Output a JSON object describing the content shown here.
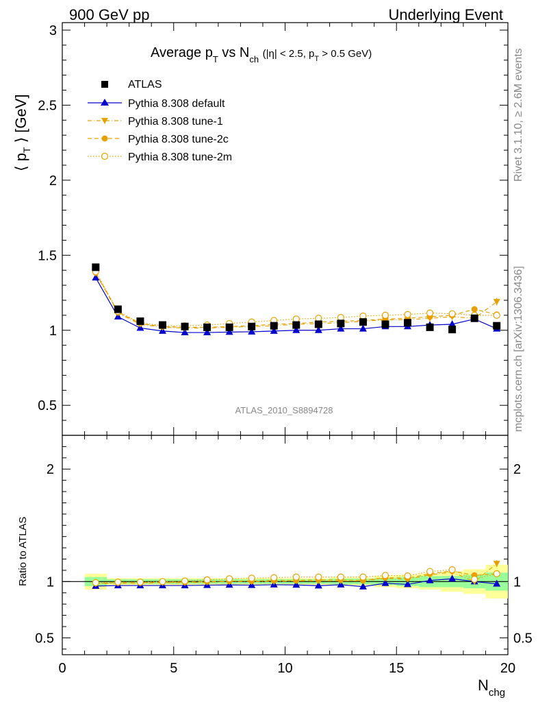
{
  "header": {
    "left": "900 GeV pp",
    "right": "Underlying Event"
  },
  "plot_title": {
    "main": "Average p",
    "sub1": "T",
    "vs": " vs N",
    "sub2": "ch",
    "cuts": "(|η| < 2.5, p",
    "sub3": "T",
    "cuts2": " > 0.5 GeV)"
  },
  "side_labels": {
    "rivet": "Rivet 3.1.10, ≥ 2.6M events",
    "mcplots": "mcplots.cern.ch [arXiv:1306.3436]"
  },
  "watermark": "ATLAS_2010_S8894728",
  "colors": {
    "atlas": "#000000",
    "default": "#0000cc",
    "tunes": "#e8a000",
    "band_green": "#99ff99",
    "band_yellow": "#ffff99"
  },
  "chart_data": [
    {
      "type": "scatter",
      "ylabel": "⟨ p_T ⟩ [GeV]",
      "xlim": [
        0,
        20
      ],
      "ylim": [
        0.3,
        3.05
      ],
      "yticks": [
        "0.5",
        "1",
        "1.5",
        "2",
        "2.5",
        "3"
      ],
      "legend_placement": "top-left",
      "x": [
        1.5,
        2.5,
        3.5,
        4.5,
        5.5,
        6.5,
        7.5,
        8.5,
        9.5,
        10.5,
        11.5,
        12.5,
        13.5,
        14.5,
        15.5,
        16.5,
        17.5,
        18.5,
        19.5
      ],
      "series": [
        {
          "name": "ATLAS",
          "values": [
            1.42,
            1.14,
            1.06,
            1.035,
            1.025,
            1.02,
            1.02,
            1.025,
            1.03,
            1.035,
            1.04,
            1.045,
            1.055,
            1.04,
            1.05,
            1.02,
            1.005,
            1.08,
            1.03
          ]
        },
        {
          "name": "Pythia 8.308 default",
          "values": [
            1.35,
            1.09,
            1.015,
            0.995,
            0.985,
            0.985,
            0.988,
            0.99,
            0.995,
            1.0,
            1.0,
            1.01,
            1.01,
            1.025,
            1.025,
            1.035,
            1.04,
            1.075,
            1.01
          ]
        },
        {
          "name": "Pythia 8.308 tune-1",
          "values": [
            1.38,
            1.115,
            1.04,
            1.02,
            1.015,
            1.015,
            1.02,
            1.025,
            1.03,
            1.04,
            1.045,
            1.05,
            1.06,
            1.07,
            1.07,
            1.08,
            1.09,
            1.08,
            1.19
          ]
        },
        {
          "name": "Pythia 8.308 tune-2c",
          "values": [
            1.385,
            1.12,
            1.045,
            1.025,
            1.02,
            1.02,
            1.025,
            1.03,
            1.04,
            1.045,
            1.055,
            1.06,
            1.065,
            1.075,
            1.08,
            1.09,
            1.1,
            1.14,
            1.105
          ]
        },
        {
          "name": "Pythia 8.308 tune-2m",
          "values": [
            1.39,
            1.125,
            1.05,
            1.03,
            1.03,
            1.035,
            1.045,
            1.055,
            1.065,
            1.075,
            1.08,
            1.085,
            1.095,
            1.1,
            1.105,
            1.115,
            1.11,
            1.1,
            1.1
          ]
        }
      ]
    },
    {
      "type": "scatter",
      "ylabel": "Ratio to ATLAS",
      "xlabel": "N_chg",
      "xlim": [
        0,
        20
      ],
      "ylim": [
        0.35,
        2.3
      ],
      "yticks": [
        "0.5",
        "1",
        "2"
      ],
      "xticks": [
        "0",
        "5",
        "10",
        "15",
        "20"
      ],
      "x": [
        1.5,
        2.5,
        3.5,
        4.5,
        5.5,
        6.5,
        7.5,
        8.5,
        9.5,
        10.5,
        11.5,
        12.5,
        13.5,
        14.5,
        15.5,
        16.5,
        17.5,
        18.5,
        19.5
      ],
      "bands": {
        "green_halfwidth": [
          0.04,
          0.02,
          0.02,
          0.02,
          0.02,
          0.02,
          0.02,
          0.02,
          0.02,
          0.02,
          0.02,
          0.025,
          0.025,
          0.03,
          0.04,
          0.05,
          0.05,
          0.06,
          0.08
        ],
        "yellow_halfwidth": [
          0.07,
          0.03,
          0.03,
          0.03,
          0.03,
          0.03,
          0.03,
          0.03,
          0.03,
          0.03,
          0.03,
          0.035,
          0.035,
          0.05,
          0.06,
          0.07,
          0.09,
          0.11,
          0.15
        ]
      },
      "series": [
        {
          "name": "Pythia 8.308 default",
          "values": [
            0.96,
            0.965,
            0.965,
            0.965,
            0.965,
            0.968,
            0.97,
            0.968,
            0.972,
            0.97,
            0.963,
            0.972,
            0.955,
            0.985,
            0.975,
            1.01,
            1.025,
            1.0,
            0.98
          ]
        },
        {
          "name": "Pythia 8.308 tune-1",
          "values": [
            0.98,
            0.985,
            0.985,
            0.99,
            0.99,
            0.995,
            1.0,
            1.0,
            1.0,
            1.005,
            1.005,
            1.005,
            1.005,
            1.03,
            1.02,
            1.06,
            1.085,
            1.0,
            1.16
          ]
        },
        {
          "name": "Pythia 8.308 tune-2c",
          "values": [
            0.985,
            0.99,
            0.99,
            0.995,
            0.995,
            1.0,
            1.005,
            1.005,
            1.01,
            1.01,
            1.015,
            1.015,
            1.01,
            1.035,
            1.03,
            1.07,
            1.095,
            1.055,
            1.07
          ]
        },
        {
          "name": "Pythia 8.308 tune-2m",
          "values": [
            0.99,
            0.995,
            0.995,
            1.0,
            1.005,
            1.015,
            1.025,
            1.03,
            1.035,
            1.04,
            1.04,
            1.04,
            1.04,
            1.055,
            1.05,
            1.09,
            1.105,
            1.02,
            1.07
          ]
        }
      ]
    }
  ]
}
